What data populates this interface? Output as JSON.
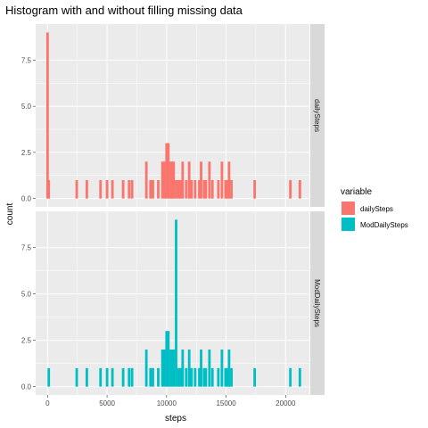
{
  "chart_data": {
    "type": "bar",
    "title": "Histogram with and without filling missing data",
    "xlabel": "steps",
    "ylabel": "count",
    "xlim": [
      -1000,
      22000
    ],
    "ylim": [
      -0.45,
      9.45
    ],
    "x_ticks": [
      0,
      5000,
      10000,
      15000,
      20000
    ],
    "x_tick_labels": [
      "0",
      "5000",
      "10000",
      "15000",
      "20000"
    ],
    "y_ticks": [
      0,
      2.5,
      5,
      7.5
    ],
    "y_tick_labels": [
      "0.0",
      "2.5",
      "5.0",
      "7.5"
    ],
    "grid": true,
    "legend_position": "right",
    "bin_width": 212,
    "legend": {
      "title": "variable",
      "entries": [
        {
          "label": "dailySteps",
          "color": "#F8766D"
        },
        {
          "label": "ModDailySteps",
          "color": "#00BFC4"
        }
      ]
    },
    "facets": [
      {
        "strip_label": "dailySteps",
        "color": "#F8766D",
        "x": [
          0,
          100,
          2450,
          3300,
          4450,
          5000,
          5450,
          6350,
          6850,
          7100,
          8300,
          8650,
          8850,
          9300,
          9650,
          9850,
          10000,
          10150,
          10350,
          10450,
          10600,
          10800,
          11000,
          11150,
          11350,
          11650,
          11900,
          12100,
          12400,
          12750,
          12900,
          13150,
          13300,
          13600,
          13850,
          14350,
          14650,
          14950,
          15100,
          15250,
          15450,
          17400,
          20400,
          21200
        ],
        "counts": [
          9,
          1,
          1,
          1,
          1,
          1,
          1,
          1,
          1,
          1,
          2,
          1,
          1,
          1,
          2,
          2,
          3,
          3,
          2,
          2,
          2,
          1,
          1,
          1,
          2,
          1,
          2,
          1,
          1,
          1,
          2,
          1,
          1,
          2,
          1,
          1,
          2,
          1,
          1,
          2,
          1,
          1,
          1,
          1
        ]
      },
      {
        "strip_label": "ModDailySteps",
        "color": "#00BFC4",
        "x": [
          100,
          2450,
          3300,
          4450,
          5000,
          5450,
          6350,
          6850,
          7100,
          8300,
          8650,
          8850,
          9300,
          9650,
          9850,
          10000,
          10150,
          10350,
          10450,
          10600,
          10800,
          11000,
          11150,
          11350,
          11650,
          11900,
          12100,
          12400,
          12750,
          12900,
          13150,
          13300,
          13600,
          13850,
          14350,
          14650,
          14950,
          15100,
          15250,
          15450,
          17400,
          20400,
          21200
        ],
        "counts": [
          1,
          1,
          1,
          1,
          1,
          1,
          1,
          1,
          1,
          2,
          1,
          1,
          1,
          2,
          2,
          3,
          3,
          2,
          2,
          2,
          9,
          1,
          1,
          2,
          1,
          2,
          1,
          1,
          1,
          2,
          1,
          1,
          2,
          1,
          1,
          2,
          1,
          1,
          2,
          1,
          1,
          1,
          1
        ]
      }
    ]
  }
}
